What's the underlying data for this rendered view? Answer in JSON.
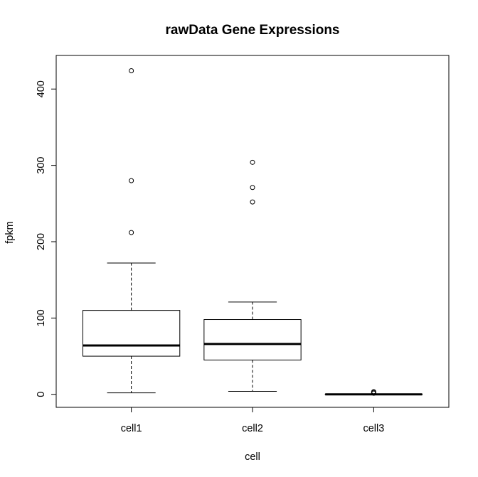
{
  "chart_data": {
    "type": "boxplot",
    "title": "rawData Gene Expressions",
    "xlabel": "cell",
    "ylabel": "fpkm",
    "categories": [
      "cell1",
      "cell2",
      "cell3"
    ],
    "ylim": [
      -17,
      444
    ],
    "yticks": [
      0,
      100,
      200,
      300,
      400
    ],
    "grid": false,
    "boxes": [
      {
        "name": "cell1",
        "whisker_low": 2,
        "q1": 50,
        "median": 64,
        "q3": 110,
        "whisker_high": 172,
        "outliers": [
          212,
          280,
          424
        ]
      },
      {
        "name": "cell2",
        "whisker_low": 4,
        "q1": 45,
        "median": 66,
        "q3": 98,
        "whisker_high": 121,
        "outliers": [
          252,
          271,
          304
        ]
      },
      {
        "name": "cell3",
        "whisker_low": 0,
        "q1": 0,
        "median": 0,
        "q3": 0.3,
        "whisker_high": 0.6,
        "outliers": [
          1.5,
          2.5,
          3.5
        ]
      }
    ]
  }
}
